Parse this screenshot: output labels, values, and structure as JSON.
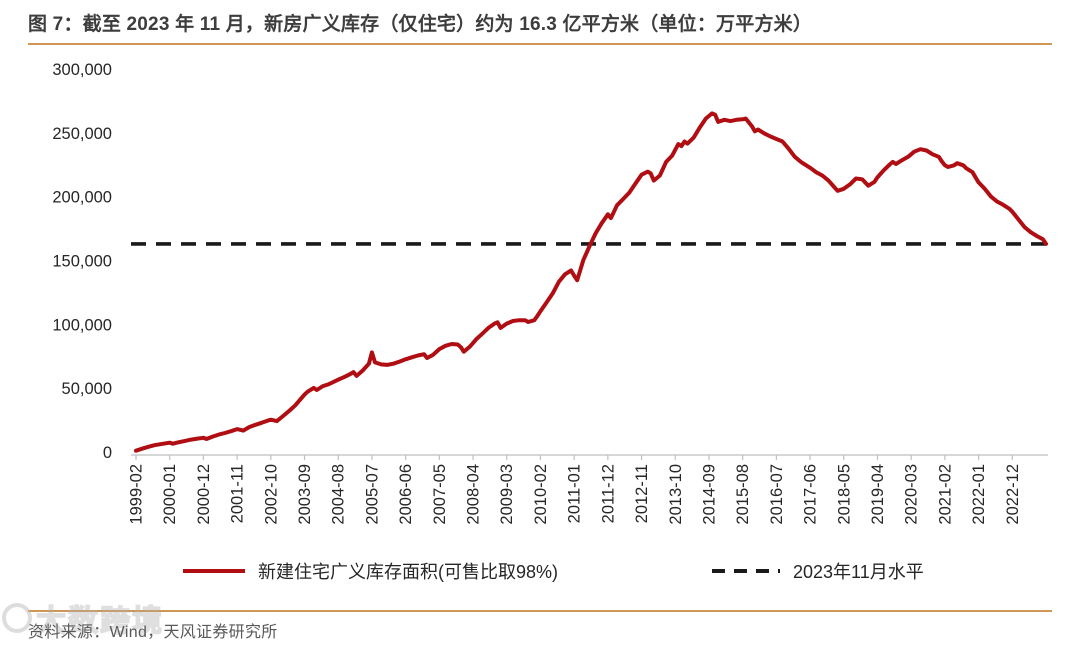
{
  "figure": {
    "title": "图 7：截至 2023 年 11 月，新房广义库存（仅住宅）约为 16.3 亿平方米（单位：万平方米）",
    "source": "资料来源：Wind，天风证券研究所",
    "watermark": "大数跨境",
    "accent_rule_color": "#CE9755"
  },
  "chart_data": {
    "type": "line",
    "title": "截至 2023 年 11 月，新房广义库存（仅住宅）约为 16.3 亿平方米",
    "unit": "万平方米",
    "ylim": [
      0,
      300000
    ],
    "ytick_step": 50000,
    "grid": false,
    "legend_position": "bottom",
    "x_first": "1999-02",
    "x_last_point": "2023-11",
    "x_tick_interval_months": 11,
    "x_tick_labels": [
      "1999-02",
      "2000-01",
      "2000-12",
      "2001-11",
      "2002-10",
      "2003-09",
      "2004-08",
      "2005-07",
      "2006-06",
      "2007-05",
      "2008-04",
      "2009-03",
      "2010-02",
      "2011-01",
      "2011-12",
      "2012-11",
      "2013-10",
      "2014-09",
      "2015-08",
      "2016-07",
      "2017-06",
      "2018-05",
      "2019-04",
      "2020-03",
      "2021-02",
      "2022-01",
      "2022-12"
    ],
    "axis_color": "#BFBFBF",
    "tick_label_color": "#262626",
    "reference_line": {
      "name": "2023年11月水平",
      "value": 163000,
      "color": "#1A1A1A",
      "style": "dashed"
    },
    "series": [
      {
        "name": "新建住宅广义库存面积(可售比取98%)",
        "color": "#B00E12",
        "points": [
          [
            "1999-02",
            1000
          ],
          [
            "1999-04",
            2600
          ],
          [
            "1999-06",
            4100
          ],
          [
            "1999-08",
            5300
          ],
          [
            "1999-10",
            6100
          ],
          [
            "1999-12",
            6900
          ],
          [
            "2000-01",
            7300
          ],
          [
            "2000-02",
            6500
          ],
          [
            "2000-04",
            7700
          ],
          [
            "2000-06",
            8700
          ],
          [
            "2000-08",
            9700
          ],
          [
            "2000-10",
            10500
          ],
          [
            "2000-12",
            11100
          ],
          [
            "2001-01",
            10200
          ],
          [
            "2001-03",
            12100
          ],
          [
            "2001-05",
            13600
          ],
          [
            "2001-07",
            14900
          ],
          [
            "2001-09",
            16300
          ],
          [
            "2001-11",
            17900
          ],
          [
            "2002-01",
            16800
          ],
          [
            "2002-03",
            19600
          ],
          [
            "2002-05",
            21300
          ],
          [
            "2002-07",
            22900
          ],
          [
            "2002-09",
            24600
          ],
          [
            "2002-10",
            25300
          ],
          [
            "2002-12",
            24200
          ],
          [
            "2003-02",
            28200
          ],
          [
            "2003-04",
            32200
          ],
          [
            "2003-06",
            36600
          ],
          [
            "2003-08",
            42200
          ],
          [
            "2003-09",
            45000
          ],
          [
            "2003-10",
            47200
          ],
          [
            "2003-12",
            50200
          ],
          [
            "2004-01",
            48600
          ],
          [
            "2004-03",
            51600
          ],
          [
            "2004-05",
            53200
          ],
          [
            "2004-08",
            56600
          ],
          [
            "2004-10",
            58800
          ],
          [
            "2004-12",
            61200
          ],
          [
            "2005-01",
            62600
          ],
          [
            "2005-02",
            59600
          ],
          [
            "2005-04",
            63800
          ],
          [
            "2005-06",
            69200
          ],
          [
            "2005-07",
            78000
          ],
          [
            "2005-08",
            70200
          ],
          [
            "2005-10",
            68600
          ],
          [
            "2005-12",
            68200
          ],
          [
            "2006-02",
            69200
          ],
          [
            "2006-04",
            70800
          ],
          [
            "2006-06",
            72600
          ],
          [
            "2006-08",
            74200
          ],
          [
            "2006-10",
            75600
          ],
          [
            "2006-12",
            76600
          ],
          [
            "2007-01",
            73600
          ],
          [
            "2007-03",
            76200
          ],
          [
            "2007-05",
            80600
          ],
          [
            "2007-07",
            83200
          ],
          [
            "2007-09",
            84600
          ],
          [
            "2007-11",
            84200
          ],
          [
            "2007-12",
            82200
          ],
          [
            "2008-01",
            78600
          ],
          [
            "2008-03",
            82600
          ],
          [
            "2008-05",
            88200
          ],
          [
            "2008-07",
            92600
          ],
          [
            "2008-09",
            97200
          ],
          [
            "2008-11",
            100600
          ],
          [
            "2008-12",
            101600
          ],
          [
            "2009-01",
            97200
          ],
          [
            "2009-03",
            100600
          ],
          [
            "2009-05",
            102600
          ],
          [
            "2009-07",
            103200
          ],
          [
            "2009-09",
            103200
          ],
          [
            "2009-10",
            101800
          ],
          [
            "2009-12",
            103200
          ],
          [
            "2010-01",
            106600
          ],
          [
            "2010-02",
            110200
          ],
          [
            "2010-04",
            117200
          ],
          [
            "2010-06",
            124200
          ],
          [
            "2010-08",
            133200
          ],
          [
            "2010-10",
            139200
          ],
          [
            "2010-12",
            142200
          ],
          [
            "2011-01",
            138200
          ],
          [
            "2011-02",
            134600
          ],
          [
            "2011-04",
            150200
          ],
          [
            "2011-06",
            161200
          ],
          [
            "2011-08",
            171200
          ],
          [
            "2011-10",
            179200
          ],
          [
            "2011-12",
            186200
          ],
          [
            "2012-01",
            183200
          ],
          [
            "2012-03",
            193200
          ],
          [
            "2012-05",
            198200
          ],
          [
            "2012-07",
            203200
          ],
          [
            "2012-09",
            210200
          ],
          [
            "2012-11",
            217200
          ],
          [
            "2013-01",
            219600
          ],
          [
            "2013-02",
            218200
          ],
          [
            "2013-03",
            212600
          ],
          [
            "2013-05",
            216600
          ],
          [
            "2013-07",
            227200
          ],
          [
            "2013-09",
            232200
          ],
          [
            "2013-11",
            241200
          ],
          [
            "2013-12",
            239600
          ],
          [
            "2014-01",
            243200
          ],
          [
            "2014-02",
            241600
          ],
          [
            "2014-04",
            246200
          ],
          [
            "2014-06",
            254200
          ],
          [
            "2014-08",
            261200
          ],
          [
            "2014-10",
            265200
          ],
          [
            "2014-11",
            264200
          ],
          [
            "2014-12",
            258600
          ],
          [
            "2015-02",
            260200
          ],
          [
            "2015-04",
            259200
          ],
          [
            "2015-06",
            260200
          ],
          [
            "2015-08",
            260600
          ],
          [
            "2015-09",
            261200
          ],
          [
            "2015-11",
            255200
          ],
          [
            "2015-12",
            251200
          ],
          [
            "2016-01",
            252600
          ],
          [
            "2016-03",
            249600
          ],
          [
            "2016-05",
            247200
          ],
          [
            "2016-07",
            245200
          ],
          [
            "2016-09",
            243200
          ],
          [
            "2016-11",
            237600
          ],
          [
            "2017-01",
            231200
          ],
          [
            "2017-03",
            227200
          ],
          [
            "2017-05",
            224200
          ],
          [
            "2017-06",
            222600
          ],
          [
            "2017-08",
            219200
          ],
          [
            "2017-10",
            216600
          ],
          [
            "2017-12",
            212600
          ],
          [
            "2018-02",
            207200
          ],
          [
            "2018-03",
            204600
          ],
          [
            "2018-05",
            206200
          ],
          [
            "2018-07",
            209600
          ],
          [
            "2018-09",
            214200
          ],
          [
            "2018-11",
            213600
          ],
          [
            "2019-01",
            208600
          ],
          [
            "2019-03",
            211600
          ],
          [
            "2019-04",
            215200
          ],
          [
            "2019-06",
            220600
          ],
          [
            "2019-08",
            225200
          ],
          [
            "2019-09",
            227200
          ],
          [
            "2019-10",
            225600
          ],
          [
            "2019-12",
            228600
          ],
          [
            "2020-02",
            231200
          ],
          [
            "2020-04",
            235200
          ],
          [
            "2020-06",
            237200
          ],
          [
            "2020-08",
            236200
          ],
          [
            "2020-10",
            233200
          ],
          [
            "2020-12",
            231200
          ],
          [
            "2021-01",
            227600
          ],
          [
            "2021-02",
            224600
          ],
          [
            "2021-03",
            223200
          ],
          [
            "2021-05",
            224600
          ],
          [
            "2021-06",
            226200
          ],
          [
            "2021-08",
            224600
          ],
          [
            "2021-09",
            222200
          ],
          [
            "2021-11",
            219200
          ],
          [
            "2021-12",
            215200
          ],
          [
            "2022-01",
            211200
          ],
          [
            "2022-03",
            206200
          ],
          [
            "2022-05",
            200200
          ],
          [
            "2022-07",
            196200
          ],
          [
            "2022-09",
            193600
          ],
          [
            "2022-11",
            190600
          ],
          [
            "2022-12",
            188200
          ],
          [
            "2023-02",
            182200
          ],
          [
            "2023-04",
            176200
          ],
          [
            "2023-06",
            172200
          ],
          [
            "2023-08",
            169200
          ],
          [
            "2023-10",
            166600
          ],
          [
            "2023-11",
            163000
          ]
        ]
      }
    ]
  }
}
